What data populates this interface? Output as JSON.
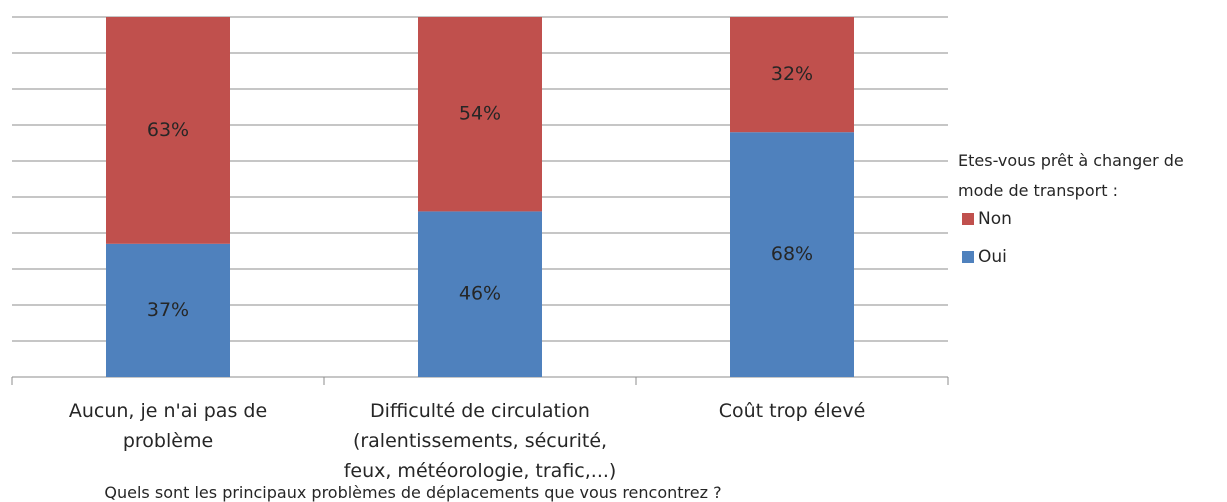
{
  "chart_data": {
    "type": "stacked_bar_100",
    "x_label": "Quels sont les principaux problèmes de déplacements que vous rencontrez ?",
    "legend_title": "Etes-vous prêt à changer de mode de transport :",
    "categories": [
      "Aucun, je n'ai pas de problème",
      "Difficulté de circulation (ralentissements, sécurité, feux, météorologie, trafic,...)",
      "Coût trop élevé"
    ],
    "series": [
      {
        "name": "Oui",
        "color": "#4f81bd",
        "values": [
          37,
          46,
          68
        ],
        "value_labels": [
          "37%",
          "46%",
          "68%"
        ]
      },
      {
        "name": "Non",
        "color": "#c0504d",
        "values": [
          63,
          54,
          32
        ],
        "value_labels": [
          "63%",
          "54%",
          "32%"
        ]
      }
    ],
    "ylim": [
      0,
      100
    ],
    "yticks": [
      0,
      10,
      20,
      30,
      40,
      50,
      60,
      70,
      80,
      90,
      100
    ],
    "grid": true,
    "legend": "right"
  }
}
